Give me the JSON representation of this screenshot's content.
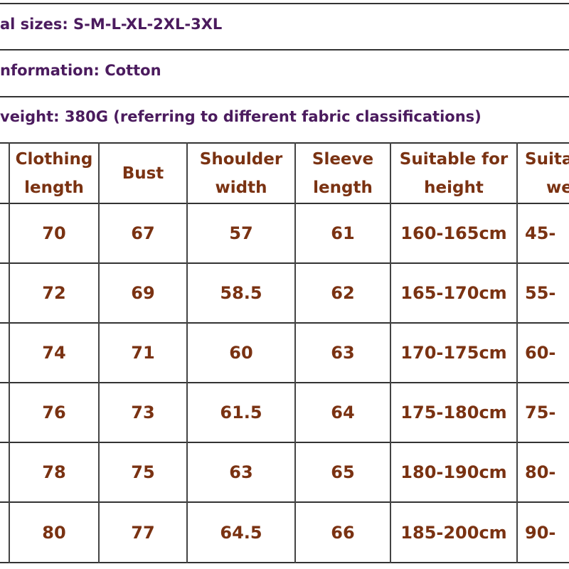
{
  "info_lines": [
    "al sizes: S-M-L-XL-2XL-3XL",
    "nformation: Cotton",
    "veight: 380G (referring to different fabric classifications)"
  ],
  "table": {
    "headers": [
      [
        "Clothing",
        "length"
      ],
      [
        "Bust"
      ],
      [
        "Shoulder",
        "width"
      ],
      [
        "Sleeve",
        "length"
      ],
      [
        "Suitable for",
        "height"
      ],
      [
        "Suita",
        "we"
      ]
    ],
    "rows": [
      [
        "70",
        "67",
        "57",
        "61",
        "160-165cm",
        "45-"
      ],
      [
        "72",
        "69",
        "58.5",
        "62",
        "165-170cm",
        "55-"
      ],
      [
        "74",
        "71",
        "60",
        "63",
        "170-175cm",
        "60-"
      ],
      [
        "76",
        "73",
        "61.5",
        "64",
        "175-180cm",
        "75-"
      ],
      [
        "78",
        "75",
        "63",
        "65",
        "180-190cm",
        "80-"
      ],
      [
        "80",
        "77",
        "64.5",
        "66",
        "185-200cm",
        "90-"
      ]
    ]
  }
}
